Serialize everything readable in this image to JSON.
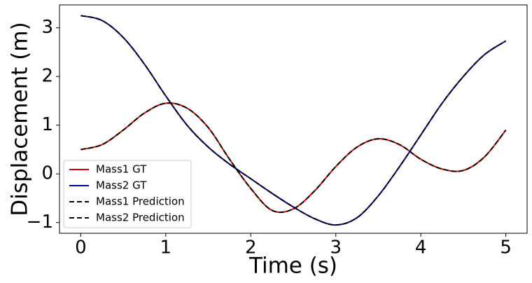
{
  "chart_data": {
    "type": "line",
    "x": [
      0,
      0.25,
      0.5,
      0.75,
      1,
      1.25,
      1.5,
      1.75,
      2,
      2.25,
      2.5,
      2.75,
      3,
      3.25,
      3.5,
      3.75,
      4,
      4.25,
      4.5,
      4.75,
      5
    ],
    "series": [
      {
        "name": "Mass1 GT",
        "color": "#d40000",
        "linestyle": "solid",
        "values": [
          0.5,
          0.6,
          0.9,
          1.25,
          1.45,
          1.35,
          0.95,
          0.3,
          -0.3,
          -0.75,
          -0.72,
          -0.35,
          0.15,
          0.55,
          0.72,
          0.6,
          0.3,
          0.1,
          0.07,
          0.35,
          0.9
        ]
      },
      {
        "name": "Mass2 GT",
        "color": "#00009a",
        "linestyle": "solid",
        "values": [
          3.25,
          3.15,
          2.8,
          2.25,
          1.6,
          1.0,
          0.55,
          0.2,
          -0.1,
          -0.4,
          -0.68,
          -0.92,
          -1.05,
          -0.9,
          -0.45,
          0.15,
          0.8,
          1.45,
          2.0,
          2.45,
          2.73
        ]
      },
      {
        "name": "Mass1 Prediction",
        "color": "#000000",
        "linestyle": "dashed",
        "values": [
          0.5,
          0.6,
          0.9,
          1.25,
          1.45,
          1.35,
          0.95,
          0.3,
          -0.3,
          -0.75,
          -0.72,
          -0.35,
          0.15,
          0.55,
          0.72,
          0.6,
          0.3,
          0.1,
          0.07,
          0.35,
          0.9
        ]
      },
      {
        "name": "Mass2 Prediction",
        "color": "#000000",
        "linestyle": "dashed",
        "values": [
          3.25,
          3.15,
          2.8,
          2.25,
          1.6,
          1.0,
          0.55,
          0.2,
          -0.1,
          -0.4,
          -0.68,
          -0.92,
          -1.05,
          -0.9,
          -0.45,
          0.15,
          0.8,
          1.45,
          2.0,
          2.45,
          2.73
        ]
      }
    ],
    "x_label": "Time (s)",
    "y_label": "Displacement (m)",
    "xlim": [
      -0.25,
      5.25
    ],
    "xticks": [
      0,
      1,
      2,
      3,
      4,
      5
    ],
    "ylim": [
      -1.22,
      3.47
    ],
    "yticks": [
      {
        "value": -1,
        "label": "−1"
      },
      0,
      1,
      2,
      3
    ],
    "legend": "lower left",
    "grid": false
  }
}
